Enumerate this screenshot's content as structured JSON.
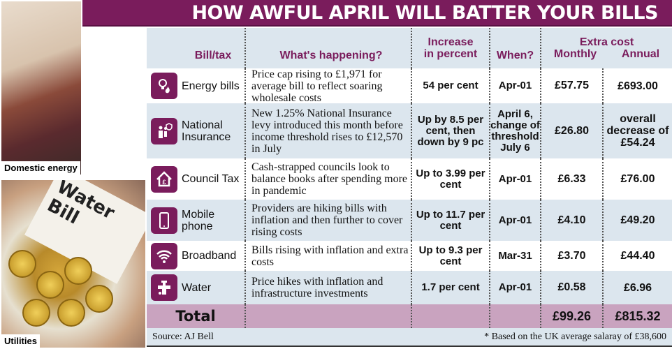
{
  "title": "HOW AWFUL APRIL WILL BATTER YOUR BILLS",
  "photos": {
    "domestic": "Domestic energy",
    "utilities": "Utilities",
    "water_bill_text": "Water Bill"
  },
  "headers": {
    "bill": "Bill/tax",
    "what": "What's happening?",
    "increase": "Increase in percent",
    "when": "When?",
    "extra": "Extra cost",
    "monthly": "Monthly",
    "annual": "Annual"
  },
  "rows": [
    {
      "icon": "energy-icon",
      "bill": "Energy bills",
      "what": "Price cap rising to £1,971 for average bill to reflect soaring wholesale costs",
      "increase": "54 per cent",
      "when": "Apr-01",
      "monthly": "£57.75",
      "annual": "£693.00"
    },
    {
      "icon": "family-icon",
      "bill": "National Insurance",
      "what": "New 1.25% National Insurance levy introduced this month before income threshold rises to £12,570 in July",
      "increase": "Up by 8.5 per cent, then down by 9 pc",
      "when": "April 6, change of threshold July 6",
      "monthly": "£26.80",
      "annual": "overall decrease of £54.24"
    },
    {
      "icon": "house-pound-icon",
      "bill": "Council Tax",
      "what": "Cash-strapped councils look to balance books after spending more in pandemic",
      "increase": "Up to 3.99 per cent",
      "when": "Apr-01",
      "monthly": "£6.33",
      "annual": "£76.00"
    },
    {
      "icon": "mobile-phone-icon",
      "bill": "Mobile phone",
      "what": "Providers are hiking bills with inflation and then further to cover rising costs",
      "increase": "Up to 11.7 per cent",
      "when": "Apr-01",
      "monthly": "£4.10",
      "annual": "£49.20"
    },
    {
      "icon": "wifi-icon",
      "bill": "Broadband",
      "what": "Bills rising with inflation and extra costs",
      "increase": "Up to 9.3 per cent",
      "when": "Mar-31",
      "monthly": "£3.70",
      "annual": "£44.40"
    },
    {
      "icon": "tap-icon",
      "bill": "Water",
      "what": "Price hikes with inflation and infrastructure investments",
      "increase": "1.7 per cent",
      "when": "Apr-01",
      "monthly": "£0.58",
      "annual": "£6.96"
    }
  ],
  "total": {
    "label": "Total",
    "monthly": "£99.26",
    "annual": "£815.32"
  },
  "footer": {
    "source": "Source: AJ Bell",
    "note": "* Based on the UK average salaray of £38,600"
  },
  "colors": {
    "brand": "#7a1c5c",
    "row_alt": "#dce6ee",
    "total": "#c9a3bf"
  }
}
